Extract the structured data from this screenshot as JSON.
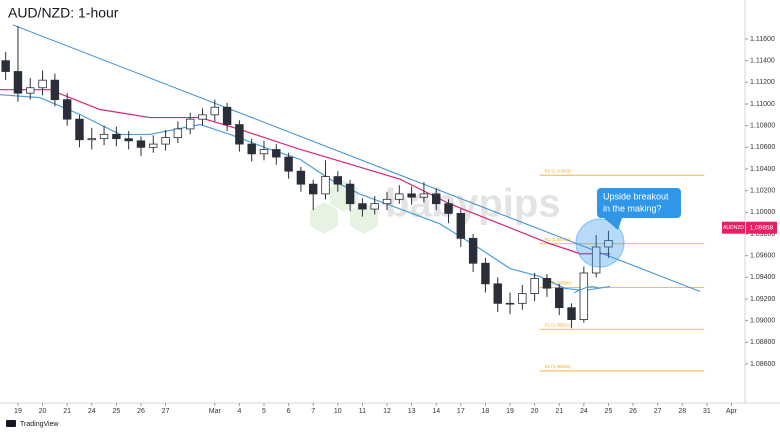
{
  "chart_data": {
    "type": "candlestick",
    "title": "AUD/NZD: 1-hour",
    "watermark": "babypips",
    "brand": "TradingView",
    "xlim": [
      -0.73,
      29.55
    ],
    "ylim": [
      1.0824,
      1.1196
    ],
    "xticks": [
      {
        "value": 0,
        "label": "19"
      },
      {
        "value": 1,
        "label": "20"
      },
      {
        "value": 2,
        "label": "21"
      },
      {
        "value": 3,
        "label": "24"
      },
      {
        "value": 4,
        "label": "25"
      },
      {
        "value": 5,
        "label": "26"
      },
      {
        "value": 6,
        "label": "27"
      },
      {
        "value": 8,
        "label": "Mar"
      },
      {
        "value": 9,
        "label": "4"
      },
      {
        "value": 10,
        "label": "5"
      },
      {
        "value": 11,
        "label": "6"
      },
      {
        "value": 12,
        "label": "7"
      },
      {
        "value": 13,
        "label": "10"
      },
      {
        "value": 14,
        "label": "11"
      },
      {
        "value": 15,
        "label": "12"
      },
      {
        "value": 16,
        "label": "13"
      },
      {
        "value": 17,
        "label": "14"
      },
      {
        "value": 18,
        "label": "17"
      },
      {
        "value": 19,
        "label": "18"
      },
      {
        "value": 20,
        "label": "19"
      },
      {
        "value": 21,
        "label": "20"
      },
      {
        "value": 22,
        "label": "21"
      },
      {
        "value": 23,
        "label": "24"
      },
      {
        "value": 24,
        "label": "25"
      },
      {
        "value": 25,
        "label": "26"
      },
      {
        "value": 26,
        "label": "27"
      },
      {
        "value": 27,
        "label": "28"
      },
      {
        "value": 28,
        "label": "31"
      },
      {
        "value": 29,
        "label": "Apr"
      }
    ],
    "yticks": [
      {
        "value": 1.116,
        "label": "1.11600"
      },
      {
        "value": 1.114,
        "label": "1.11400"
      },
      {
        "value": 1.112,
        "label": "1.11200"
      },
      {
        "value": 1.11,
        "label": "1.11000"
      },
      {
        "value": 1.108,
        "label": "1.10800"
      },
      {
        "value": 1.106,
        "label": "1.10600"
      },
      {
        "value": 1.104,
        "label": "1.10400"
      },
      {
        "value": 1.102,
        "label": "1.10200"
      },
      {
        "value": 1.1,
        "label": "1.10000"
      },
      {
        "value": 1.098,
        "label": "1.09800"
      },
      {
        "value": 1.096,
        "label": "1.09600"
      },
      {
        "value": 1.094,
        "label": "1.09400"
      },
      {
        "value": 1.092,
        "label": "1.09200"
      },
      {
        "value": 1.09,
        "label": "1.09000"
      },
      {
        "value": 1.088,
        "label": "1.08800"
      },
      {
        "value": 1.086,
        "label": "1.08600"
      }
    ],
    "grid": false,
    "candles": {
      "up_color": "#ffffff",
      "down_color": "#2a2e39",
      "wick_color": "#2a2e39",
      "x": [
        -0.5,
        0,
        0.5,
        1,
        1.5,
        2,
        2.5,
        3,
        3.5,
        4,
        4.5,
        5,
        5.5,
        6,
        6.5,
        7,
        7.5,
        8,
        8.5,
        9,
        9.5,
        10,
        10.5,
        11,
        11.5,
        12,
        12.5,
        13,
        13.5,
        14,
        14.5,
        15,
        15.5,
        16,
        16.5,
        17,
        17.5,
        18,
        18.5,
        19,
        19.5,
        20,
        20.5,
        21,
        21.5,
        22,
        22.5,
        23,
        23.5,
        24
      ],
      "open": [
        1.114,
        1.113,
        1.111,
        1.1115,
        1.1122,
        1.1104,
        1.1086,
        1.1067,
        1.1068,
        1.1072,
        1.1068,
        1.1066,
        1.106,
        1.1063,
        1.1069,
        1.1077,
        1.1086,
        1.109,
        1.1097,
        1.1081,
        1.1063,
        1.1054,
        1.1058,
        1.1051,
        1.1038,
        1.1026,
        1.1017,
        1.1033,
        1.1026,
        1.1008,
        1.1003,
        1.1008,
        1.1012,
        1.1017,
        1.1014,
        1.1017,
        1.1008,
        1.0999,
        1.0976,
        1.0953,
        1.0934,
        1.0916,
        1.0916,
        1.0925,
        1.0939,
        1.093,
        1.0912,
        1.0901,
        1.0944,
        1.0968
      ],
      "high": [
        1.1148,
        1.1172,
        1.1124,
        1.1131,
        1.1128,
        1.111,
        1.109,
        1.1078,
        1.108,
        1.1079,
        1.1075,
        1.107,
        1.1071,
        1.1076,
        1.1084,
        1.1092,
        1.1096,
        1.1104,
        1.1101,
        1.1085,
        1.1068,
        1.1066,
        1.1063,
        1.1055,
        1.1042,
        1.103,
        1.1048,
        1.1038,
        1.103,
        1.1013,
        1.1015,
        1.1019,
        1.1025,
        1.1024,
        1.1028,
        1.1022,
        1.1012,
        1.1003,
        1.098,
        1.0958,
        1.094,
        1.0926,
        1.0933,
        1.0944,
        1.0943,
        1.0934,
        1.0916,
        1.095,
        1.0979,
        1.0983
      ],
      "low": [
        1.1122,
        1.1102,
        1.1104,
        1.1108,
        1.1098,
        1.108,
        1.106,
        1.1058,
        1.1062,
        1.1061,
        1.1058,
        1.1052,
        1.1055,
        1.1057,
        1.1064,
        1.1072,
        1.108,
        1.1084,
        1.1075,
        1.1056,
        1.1047,
        1.1048,
        1.1044,
        1.1031,
        1.1019,
        1.1002,
        1.1012,
        1.1019,
        1.1001,
        1.0996,
        1.0998,
        1.1002,
        1.1008,
        1.1007,
        1.1009,
        1.1002,
        1.099,
        1.0968,
        1.0945,
        1.0926,
        1.0908,
        1.0906,
        1.091,
        1.0918,
        1.0922,
        1.0905,
        1.0893,
        1.0898,
        1.094,
        1.0958
      ],
      "close": [
        1.113,
        1.111,
        1.1115,
        1.1122,
        1.1104,
        1.1086,
        1.1067,
        1.1068,
        1.1072,
        1.1068,
        1.1066,
        1.106,
        1.1063,
        1.1069,
        1.1077,
        1.1086,
        1.109,
        1.1097,
        1.1081,
        1.1063,
        1.1054,
        1.1058,
        1.1051,
        1.1038,
        1.1026,
        1.1017,
        1.1033,
        1.1026,
        1.1008,
        1.1003,
        1.1008,
        1.1012,
        1.1017,
        1.1014,
        1.1017,
        1.1008,
        1.0999,
        1.0976,
        1.0953,
        1.0934,
        1.0916,
        1.0916,
        1.0925,
        1.0939,
        1.093,
        1.0912,
        1.0901,
        1.0944,
        1.0968,
        1.0974
      ]
    },
    "series": [
      {
        "color": "#d6257a",
        "x": [
          -0.73,
          1.3,
          3.33,
          5.37,
          7.4,
          9.02,
          11.46,
          13.5,
          15.53,
          17.56,
          19.59,
          21.63,
          22.85,
          24.07
        ],
        "values": [
          1.11132,
          1.11132,
          1.10949,
          1.10875,
          1.10875,
          1.10765,
          1.10582,
          1.10444,
          1.10306,
          1.10077,
          1.09894,
          1.0971,
          1.09618,
          1.09618
        ]
      },
      {
        "color": "#4a9fdc",
        "x": [
          -0.73,
          0.89,
          2.52,
          4.15,
          5.37,
          7.4,
          8.62,
          10.24,
          11.46,
          12.68,
          13.9,
          15.53,
          17.15,
          18.78,
          20.0,
          21.22,
          22.24,
          23.05,
          24.07
        ],
        "values": [
          1.11086,
          1.11059,
          1.10903,
          1.10719,
          1.10719,
          1.10811,
          1.10719,
          1.10582,
          1.1049,
          1.10306,
          1.10169,
          1.10031,
          1.09894,
          1.09664,
          1.09481,
          1.09407,
          1.09297,
          1.09279,
          1.09316
        ]
      }
    ],
    "trendline": {
      "color": "#3d8fd6",
      "x": [
        -0.2,
        27.72
      ],
      "values": [
        1.1173,
        1.0927
      ]
    },
    "pivots": {
      "color": "#f5a623",
      "x": [
        21.2,
        27.9
      ],
      "levels": [
        {
          "value": 1.10343,
          "label": "R2 (1.10343)"
        },
        {
          "value": 1.0971,
          "label": "R1 (1.09710)"
        },
        {
          "value": 1.09306,
          "label": "PP (1.09306)"
        },
        {
          "value": 1.08921,
          "label": "S1 (1.08921)"
        },
        {
          "value": 1.08536,
          "label": "S2 (1.08536)"
        }
      ]
    },
    "last_price": {
      "symbol": "AUDNZD",
      "value": 1.09858,
      "label": "1.09858",
      "color": "#e91e63"
    },
    "annotation": {
      "lines": [
        "Upside breakout",
        "in the making?"
      ],
      "color": "#2f96e8"
    }
  }
}
